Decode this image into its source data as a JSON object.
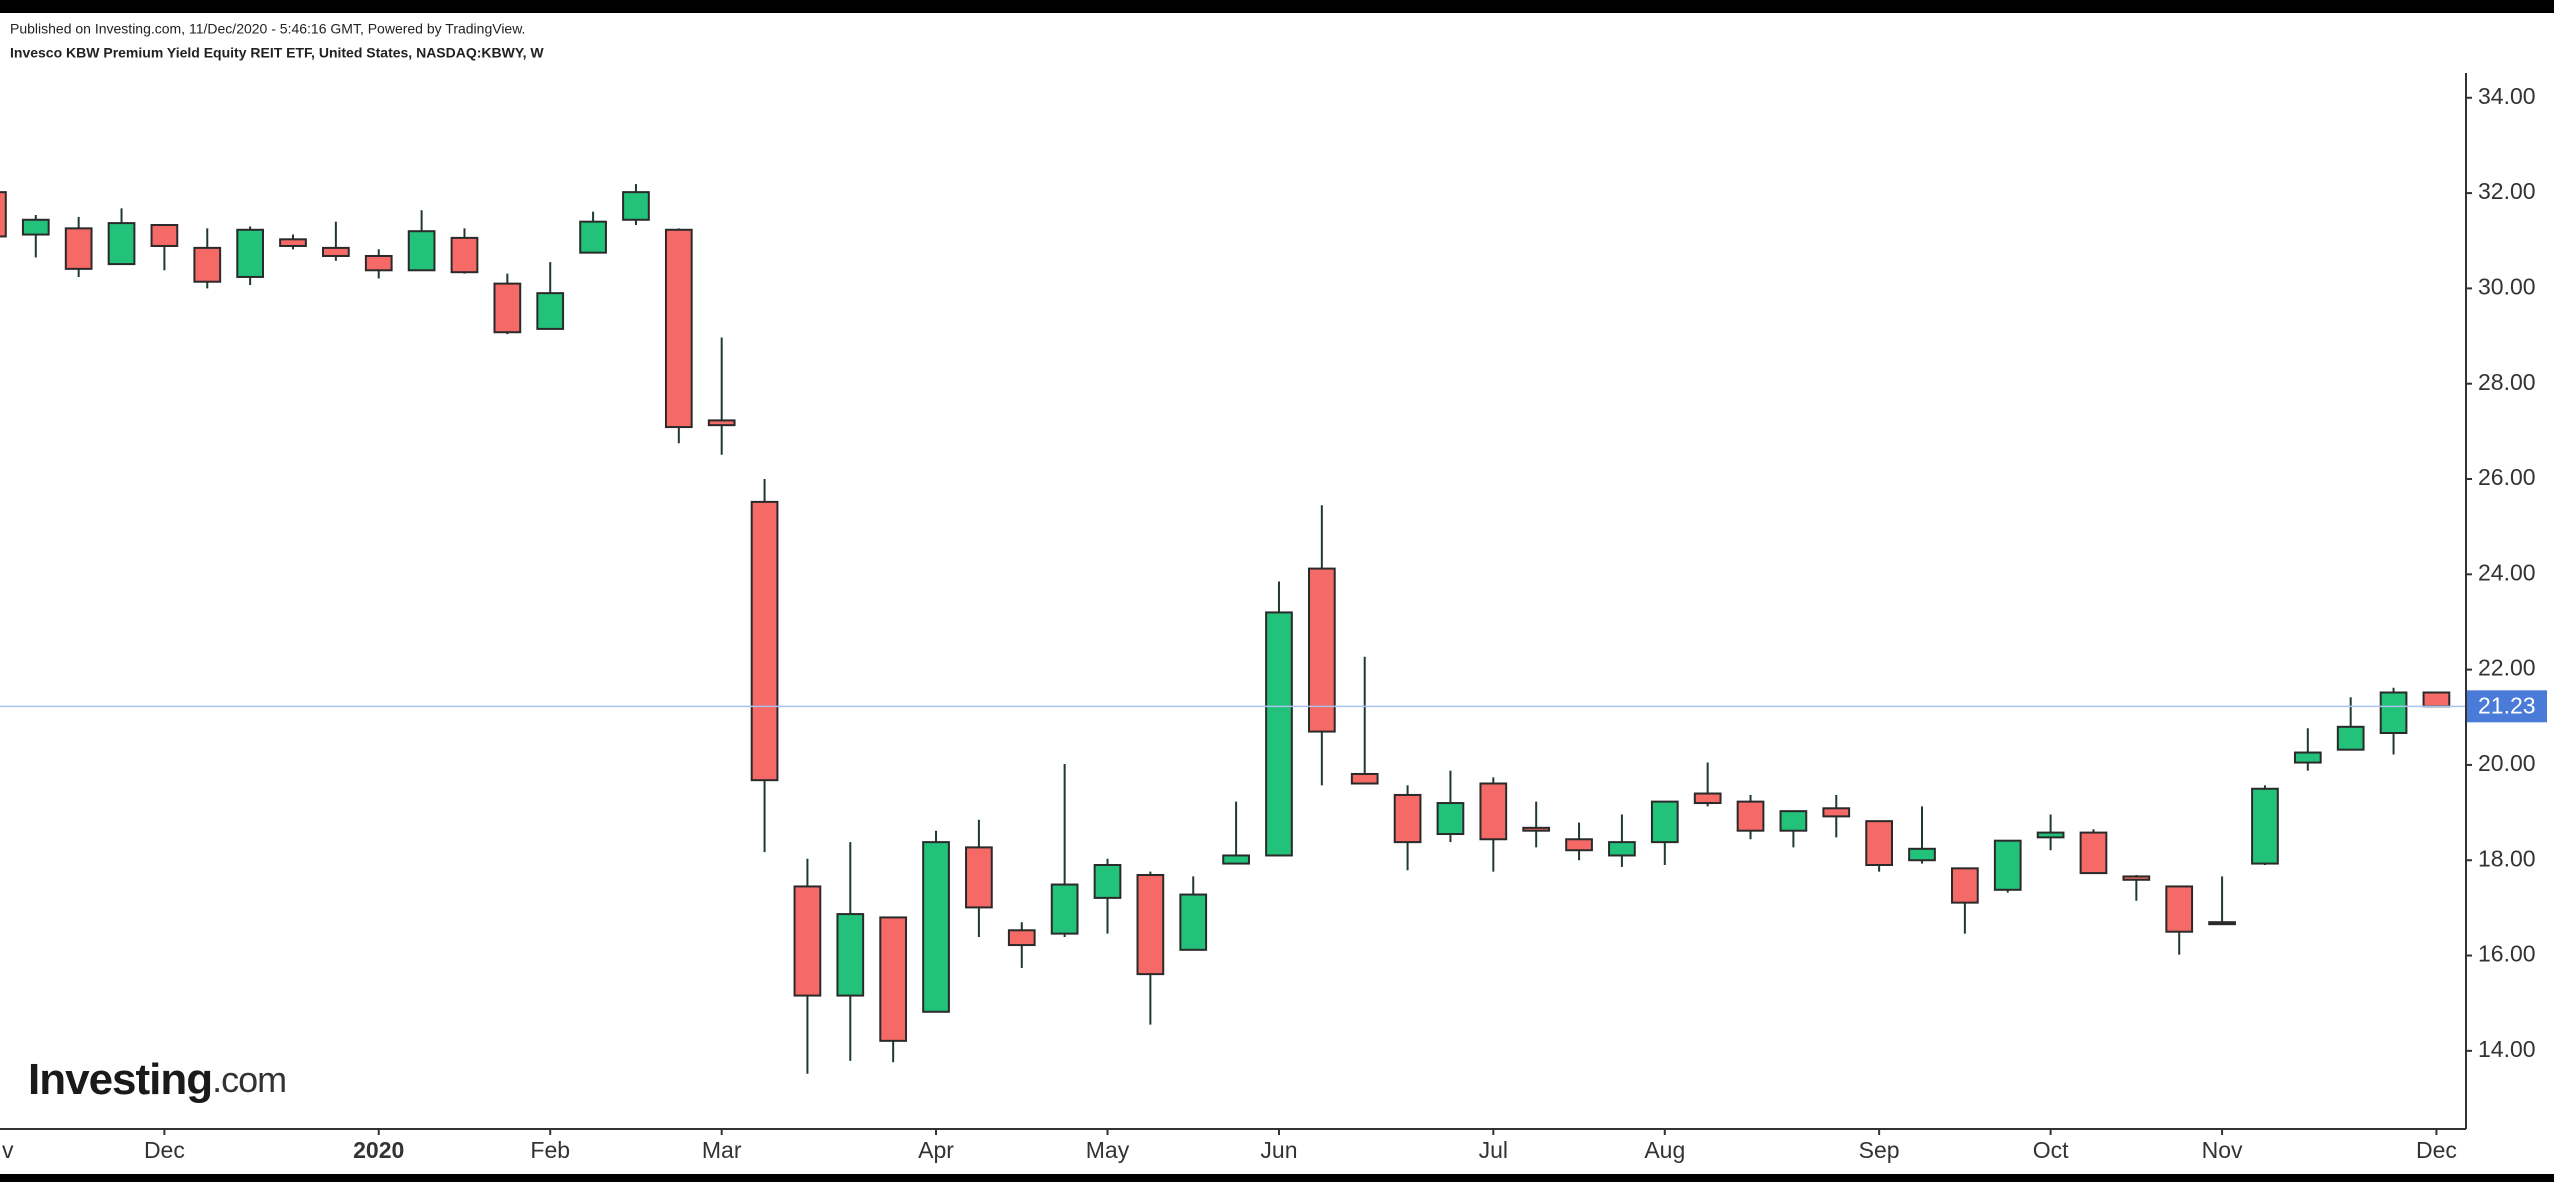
{
  "chart_data": {
    "type": "candlestick",
    "source_note": "Published on Investing.com, 11/Dec/2020 - 5:46:16 GMT, Powered by TradingView.",
    "title": "Invesco KBW Premium Yield Equity REIT ETF, United States, NASDAQ:KBWY, W",
    "watermark": {
      "brand": "Investing",
      "suffix": ".com"
    },
    "x": [
      0,
      1,
      2,
      3,
      4,
      5,
      6,
      7,
      8,
      9,
      10,
      11,
      12,
      13,
      14,
      15,
      16,
      17,
      18,
      19,
      20,
      21,
      22,
      23,
      24,
      25,
      26,
      27,
      28,
      29,
      30,
      31,
      32,
      33,
      34,
      35,
      36,
      37,
      38,
      39,
      40,
      41,
      42,
      43,
      44,
      45,
      46,
      47,
      48,
      49,
      50,
      51,
      52,
      53,
      54,
      55,
      56,
      57
    ],
    "open": [
      32.02,
      31.13,
      31.26,
      30.51,
      31.33,
      30.85,
      30.24,
      31.03,
      30.85,
      30.68,
      30.38,
      31.06,
      30.1,
      29.15,
      30.75,
      31.44,
      31.23,
      27.23,
      25.52,
      17.45,
      15.16,
      16.8,
      14.82,
      18.27,
      16.53,
      16.46,
      17.21,
      17.69,
      16.12,
      17.93,
      18.1,
      24.12,
      19.81,
      19.37,
      18.55,
      19.61,
      18.68,
      18.44,
      18.1,
      18.38,
      19.4,
      19.23,
      18.62,
      19.09,
      18.82,
      18.0,
      17.83,
      17.38,
      18.48,
      18.58,
      17.66,
      17.45,
      16.7,
      17.93,
      20.05,
      20.32,
      20.67,
      21.52
    ],
    "high": [
      32.02,
      31.54,
      31.5,
      31.68,
      31.33,
      31.26,
      31.3,
      31.13,
      31.4,
      30.82,
      31.64,
      31.26,
      30.31,
      30.55,
      31.61,
      32.19,
      31.26,
      28.97,
      26.0,
      18.03,
      18.38,
      16.8,
      18.62,
      18.85,
      16.7,
      20.02,
      18.03,
      17.76,
      17.66,
      19.23,
      23.85,
      25.45,
      22.27,
      19.57,
      19.88,
      19.74,
      19.23,
      18.79,
      18.96,
      19.23,
      20.05,
      19.37,
      19.03,
      19.37,
      18.82,
      19.13,
      17.83,
      18.41,
      18.96,
      18.65,
      17.69,
      17.45,
      17.66,
      19.57,
      20.77,
      21.42,
      21.62,
      21.52
    ],
    "low": [
      31.09,
      30.65,
      30.24,
      30.51,
      30.38,
      30.0,
      30.07,
      30.82,
      30.58,
      30.21,
      30.38,
      30.31,
      29.04,
      29.15,
      30.75,
      31.33,
      26.75,
      26.51,
      18.17,
      13.52,
      13.79,
      13.76,
      14.82,
      16.39,
      15.74,
      16.39,
      16.46,
      14.55,
      16.12,
      17.93,
      18.1,
      19.57,
      19.61,
      17.79,
      18.38,
      17.76,
      18.27,
      18.0,
      17.86,
      17.9,
      19.13,
      18.44,
      18.27,
      18.48,
      17.76,
      17.93,
      16.46,
      17.32,
      18.21,
      17.73,
      17.15,
      16.02,
      16.67,
      17.9,
      19.88,
      20.32,
      20.22,
      21.23
    ],
    "close": [
      31.09,
      31.44,
      30.41,
      31.37,
      30.89,
      30.14,
      31.23,
      30.89,
      30.68,
      30.38,
      31.2,
      30.34,
      29.08,
      29.9,
      31.4,
      32.02,
      27.09,
      27.13,
      19.68,
      15.16,
      16.87,
      14.21,
      18.38,
      17.01,
      16.22,
      17.49,
      17.9,
      15.61,
      17.28,
      18.1,
      23.2,
      20.7,
      19.61,
      18.38,
      19.2,
      18.44,
      18.62,
      18.21,
      18.38,
      19.23,
      19.2,
      18.62,
      19.03,
      18.92,
      17.9,
      18.24,
      17.11,
      18.41,
      18.58,
      17.73,
      17.59,
      16.5,
      16.67,
      19.5,
      20.26,
      20.8,
      21.52,
      21.23
    ],
    "up_color": "#22c27a",
    "down_color": "#f56a66",
    "last_price": 21.23,
    "last_price_color": "#4a7bd9",
    "xlim": [
      0.165,
      57.69
    ],
    "xticks": [
      {
        "value": 0,
        "label": "v"
      },
      {
        "value": 4,
        "label": "Dec"
      },
      {
        "value": 9,
        "label": "2020"
      },
      {
        "value": 13,
        "label": "Feb"
      },
      {
        "value": 17,
        "label": "Mar"
      },
      {
        "value": 22,
        "label": "Apr"
      },
      {
        "value": 26,
        "label": "May"
      },
      {
        "value": 30,
        "label": "Jun"
      },
      {
        "value": 35,
        "label": "Jul"
      },
      {
        "value": 39,
        "label": "Aug"
      },
      {
        "value": 44,
        "label": "Sep"
      },
      {
        "value": 48,
        "label": "Oct"
      },
      {
        "value": 52,
        "label": "Nov"
      },
      {
        "value": 57,
        "label": "Dec"
      }
    ],
    "ylim": [
      12.36,
      34.52
    ],
    "yticks": [
      {
        "value": 14,
        "label": "14.00"
      },
      {
        "value": 16,
        "label": "16.00"
      },
      {
        "value": 18,
        "label": "18.00"
      },
      {
        "value": 20,
        "label": "20.00"
      },
      {
        "value": 22,
        "label": "22.00"
      },
      {
        "value": 24,
        "label": "24.00"
      },
      {
        "value": 26,
        "label": "26.00"
      },
      {
        "value": 28,
        "label": "28.00"
      },
      {
        "value": 30,
        "label": "30.00"
      },
      {
        "value": 32,
        "label": "32.00"
      },
      {
        "value": 34,
        "label": "34.00"
      }
    ],
    "y_axis_side": "right"
  }
}
